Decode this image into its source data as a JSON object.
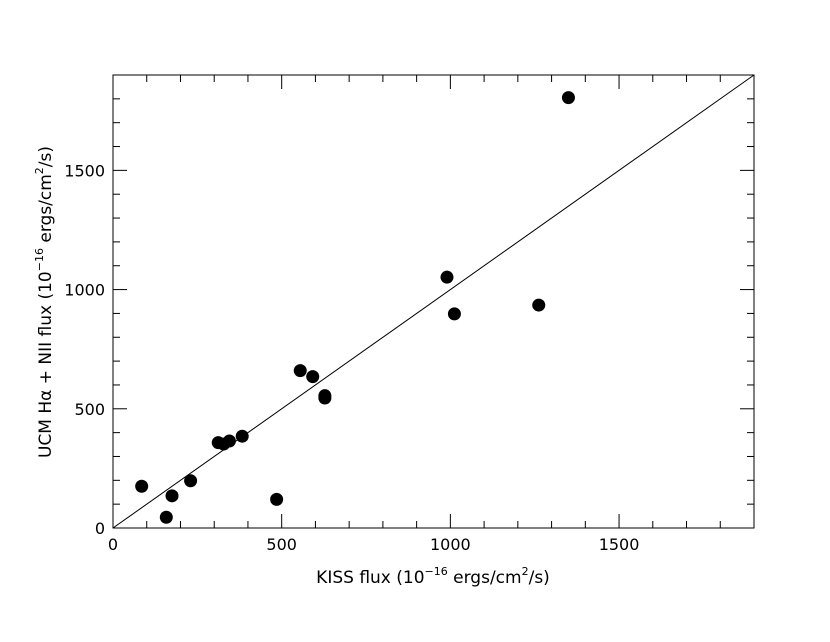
{
  "chart_data": {
    "type": "scatter",
    "xlabel": {
      "base": "KISS flux (10",
      "exp": "−16",
      "mid": " ergs/cm",
      "exp2": "2",
      "end": "/s)"
    },
    "ylabel": {
      "base": "UCM Hα + NII flux (10",
      "exp": "−16",
      "mid": " ergs/cm",
      "exp2": "2",
      "end": "/s)"
    },
    "xlim": [
      0,
      1900
    ],
    "ylim": [
      0,
      1900
    ],
    "x_ticks": [
      0,
      500,
      1000,
      1500
    ],
    "y_ticks": [
      0,
      500,
      1000,
      1500
    ],
    "x_tick_labels": [
      "0",
      "500",
      "1000",
      "1500"
    ],
    "y_tick_labels": [
      "0",
      "500",
      "1000",
      "1500"
    ],
    "minor_tick_step": 100,
    "reference_line": {
      "type": "y=x"
    },
    "points": [
      {
        "x": 85,
        "y": 175
      },
      {
        "x": 158,
        "y": 45
      },
      {
        "x": 175,
        "y": 135
      },
      {
        "x": 230,
        "y": 198
      },
      {
        "x": 312,
        "y": 358
      },
      {
        "x": 328,
        "y": 352
      },
      {
        "x": 345,
        "y": 365
      },
      {
        "x": 383,
        "y": 385
      },
      {
        "x": 485,
        "y": 120
      },
      {
        "x": 555,
        "y": 660
      },
      {
        "x": 592,
        "y": 635
      },
      {
        "x": 628,
        "y": 555
      },
      {
        "x": 628,
        "y": 545
      },
      {
        "x": 990,
        "y": 1052
      },
      {
        "x": 1012,
        "y": 898
      },
      {
        "x": 1262,
        "y": 935
      },
      {
        "x": 1350,
        "y": 1805
      }
    ]
  }
}
